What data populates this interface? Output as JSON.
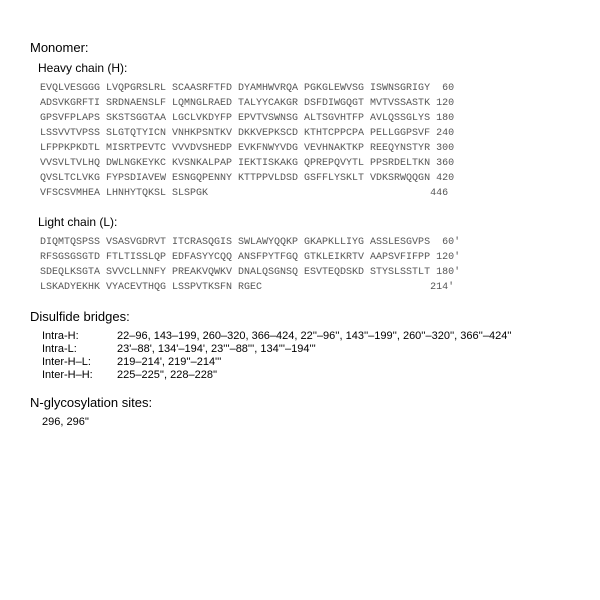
{
  "monomer_label": "Monomer:",
  "heavy_chain_label": "Heavy chain (H):",
  "light_chain_label": "Light chain (L):",
  "heavy_sequence": "EVQLVESGGG LVQPGRSLRL SCAASRFTFD DYAMHWVRQA PGKGLEWVSG ISWNSGRIGY  60\nADSVKGRFTI SRDNAENSLF LQMNGLRAED TALYYCAKGR DSFDIWGQGT MVTVSSASTK 120\nGPSVFPLAPS SKSTSGGTAA LGCLVKDYFP EPVTVSWNSG ALTSGVHTFP AVLQSSGLYS 180\nLSSVVTVPSS SLGTQTYICN VNHKPSNTKV DKKVEPKSCD KTHTCPPCPA PELLGGPSVF 240\nLFPPKPKDTL MISRTPEVTC VVVDVSHEDP EVKFNWYVDG VEVHNAKTKP REEQYNSTYR 300\nVVSVLTVLHQ DWLNGKEYKC KVSNKALPAP IEKTISKAKG QPREPQVYTL PPSRDELTKN 360\nQVSLTCLVKG FYPSDIAVEW ESNGQPENNY KTTPPVLDSD GSFFLYSKLT VDKSRWQQGN 420\nVFSCSVMHEA LHNHYTQKSL SLSPGK                                     446",
  "light_sequence": "DIQMTQSPSS VSASVGDRVT ITCRASQGIS SWLAWYQQKP GKAPKLLIYG ASSLESGVPS  60'\nRFSGSGSGTD FTLTISSLQP EDFASYYCQQ ANSFPYTFGQ GTKLEIKRTV AAPSVFIFPP 120'\nSDEQLKSGTA SVVCLLNNFY PREAKVQWKV DNALQSGNSQ ESVTEQDSKD STYSLSSTLT 180'\nLSKADYEKHK VYACEVTHQG LSSPVTKSFN RGEC                            214'",
  "disulfide_label": "Disulfide bridges:",
  "bridges": [
    {
      "label": "Intra-H:",
      "value": "22–96, 143–199, 260–320, 366–424, 22''–96'', 143''–199'', 260''–320'', 366''–424''"
    },
    {
      "label": "Intra-L:",
      "value": "23'–88', 134'–194', 23'''–88''', 134'''–194'''"
    },
    {
      "label": "Inter-H–L:",
      "value": "219–214', 219''–214'''"
    },
    {
      "label": "Inter-H–H:",
      "value": "225–225'', 228–228''"
    }
  ],
  "glyc_label": "N-glycosylation sites:",
  "glyc_value": "296, 296''"
}
